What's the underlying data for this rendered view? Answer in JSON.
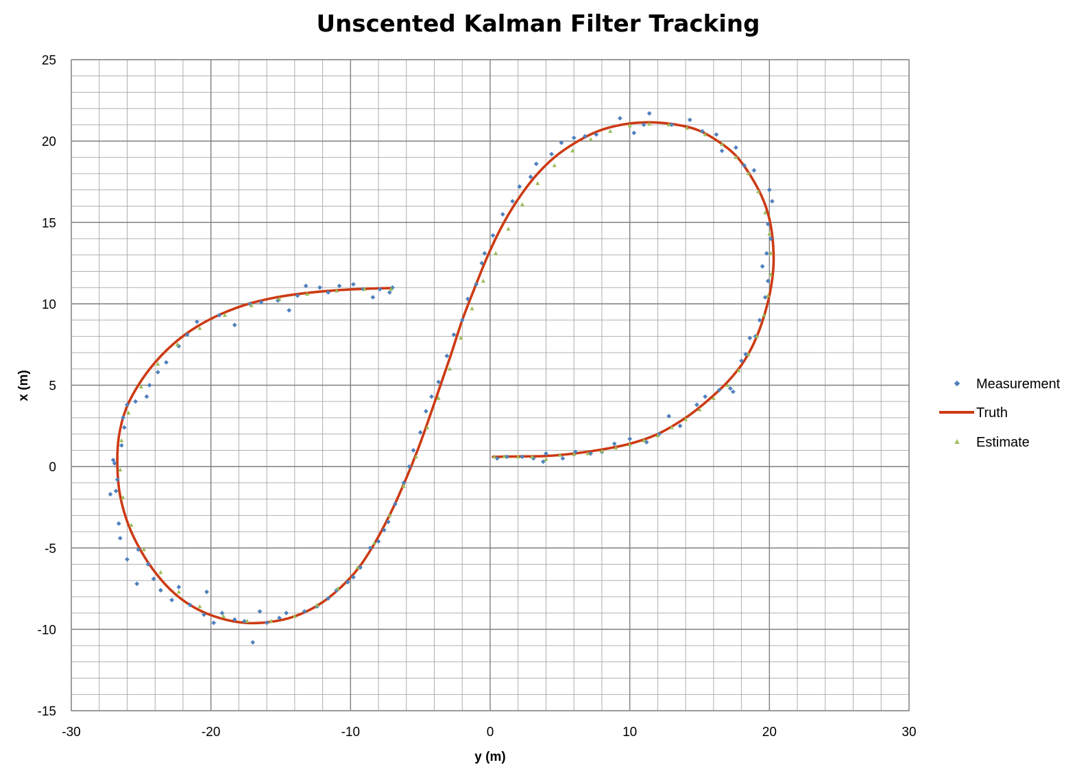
{
  "chart_data": {
    "type": "scatter",
    "title": "Unscented Kalman Filter Tracking",
    "xlabel": "y (m)",
    "ylabel": "x (m)",
    "xlim": [
      -30,
      30
    ],
    "ylim": [
      -15,
      25
    ],
    "major_x_ticks": [
      "-30",
      "-20",
      "-10",
      "0",
      "10",
      "20",
      "30"
    ],
    "major_y_ticks": [
      "25",
      "20",
      "15",
      "10",
      "5",
      "0",
      "-5",
      "-10",
      "-15"
    ],
    "grid": "on",
    "legend_position": "right",
    "series": [
      {
        "name": "Measurement",
        "marker": "diamond",
        "color": "#4f81bd",
        "points": [
          [
            0.5,
            0.5
          ],
          [
            1.2,
            0.6
          ],
          [
            2.3,
            0.6
          ],
          [
            3.1,
            0.5
          ],
          [
            3.8,
            0.3
          ],
          [
            4.0,
            0.8
          ],
          [
            5.2,
            0.5
          ],
          [
            6.1,
            0.9
          ],
          [
            7.2,
            0.8
          ],
          [
            8.0,
            0.9
          ],
          [
            8.9,
            1.4
          ],
          [
            10.0,
            1.7
          ],
          [
            11.2,
            1.5
          ],
          [
            12.1,
            2.0
          ],
          [
            12.8,
            3.1
          ],
          [
            13.6,
            2.5
          ],
          [
            14.8,
            3.8
          ],
          [
            15.4,
            4.3
          ],
          [
            16.4,
            4.7
          ],
          [
            17.2,
            4.8
          ],
          [
            17.4,
            4.6
          ],
          [
            18.0,
            6.5
          ],
          [
            18.3,
            6.9
          ],
          [
            18.6,
            7.9
          ],
          [
            19.0,
            8.0
          ],
          [
            19.3,
            9.0
          ],
          [
            19.7,
            10.4
          ],
          [
            19.9,
            11.4
          ],
          [
            19.5,
            12.3
          ],
          [
            19.8,
            13.1
          ],
          [
            20.1,
            14.0
          ],
          [
            19.9,
            14.9
          ],
          [
            20.2,
            16.3
          ],
          [
            20.0,
            17.0
          ],
          [
            18.9,
            18.2
          ],
          [
            18.2,
            18.5
          ],
          [
            17.6,
            19.6
          ],
          [
            16.6,
            19.4
          ],
          [
            16.2,
            20.4
          ],
          [
            15.2,
            20.6
          ],
          [
            14.3,
            21.3
          ],
          [
            13.0,
            21.0
          ],
          [
            11.4,
            21.7
          ],
          [
            11.0,
            21.0
          ],
          [
            10.3,
            20.5
          ],
          [
            9.3,
            21.4
          ],
          [
            7.6,
            20.4
          ],
          [
            6.8,
            20.3
          ],
          [
            6.0,
            20.2
          ],
          [
            5.1,
            19.9
          ],
          [
            4.4,
            19.2
          ],
          [
            3.3,
            18.6
          ],
          [
            2.9,
            17.8
          ],
          [
            2.1,
            17.2
          ],
          [
            1.6,
            16.3
          ],
          [
            0.9,
            15.5
          ],
          [
            0.2,
            14.2
          ],
          [
            -0.4,
            13.1
          ],
          [
            -0.6,
            12.5
          ],
          [
            -1.0,
            11.2
          ],
          [
            -1.6,
            10.3
          ],
          [
            -2.0,
            9.0
          ],
          [
            -2.6,
            8.1
          ],
          [
            -3.1,
            6.8
          ],
          [
            -3.7,
            5.2
          ],
          [
            -4.2,
            4.3
          ],
          [
            -4.6,
            3.4
          ],
          [
            -5.0,
            2.1
          ],
          [
            -5.5,
            1.0
          ],
          [
            -5.8,
            0.0
          ],
          [
            -6.2,
            -1.0
          ],
          [
            -6.8,
            -2.3
          ],
          [
            -7.3,
            -3.4
          ],
          [
            -7.6,
            -3.9
          ],
          [
            -8.0,
            -4.6
          ],
          [
            -8.6,
            -5.0
          ],
          [
            -9.3,
            -6.2
          ],
          [
            -9.8,
            -6.8
          ],
          [
            -10.2,
            -7.1
          ],
          [
            -11.0,
            -7.6
          ],
          [
            -11.6,
            -8.1
          ],
          [
            -12.4,
            -8.6
          ],
          [
            -13.3,
            -8.9
          ],
          [
            -14.6,
            -9.0
          ],
          [
            -15.1,
            -9.3
          ],
          [
            -16.0,
            -9.6
          ],
          [
            -16.5,
            -8.9
          ],
          [
            -17.0,
            -10.8
          ],
          [
            -17.6,
            -9.5
          ],
          [
            -18.3,
            -9.4
          ],
          [
            -19.2,
            -9.0
          ],
          [
            -19.8,
            -9.6
          ],
          [
            -20.5,
            -9.1
          ],
          [
            -20.3,
            -7.7
          ],
          [
            -21.5,
            -8.5
          ],
          [
            -22.3,
            -7.4
          ],
          [
            -22.8,
            -8.2
          ],
          [
            -23.6,
            -7.6
          ],
          [
            -24.1,
            -6.9
          ],
          [
            -24.5,
            -6.0
          ],
          [
            -25.3,
            -7.2
          ],
          [
            -25.2,
            -5.1
          ],
          [
            -26.0,
            -5.7
          ],
          [
            -26.5,
            -4.4
          ],
          [
            -26.6,
            -3.5
          ],
          [
            -26.8,
            -1.5
          ],
          [
            -27.2,
            -1.7
          ],
          [
            -26.7,
            -0.8
          ],
          [
            -26.9,
            0.2
          ],
          [
            -27.0,
            0.4
          ],
          [
            -26.4,
            1.3
          ],
          [
            -26.2,
            2.4
          ],
          [
            -26.3,
            3.0
          ],
          [
            -26.0,
            3.8
          ],
          [
            -25.4,
            4.0
          ],
          [
            -24.6,
            4.3
          ],
          [
            -24.4,
            5.0
          ],
          [
            -23.8,
            5.8
          ],
          [
            -23.2,
            6.4
          ],
          [
            -22.3,
            7.4
          ],
          [
            -21.7,
            8.1
          ],
          [
            -21.0,
            8.9
          ],
          [
            -19.4,
            9.3
          ],
          [
            -18.3,
            8.7
          ],
          [
            -17.2,
            10.0
          ],
          [
            -16.4,
            10.1
          ],
          [
            -15.2,
            10.2
          ],
          [
            -14.4,
            9.6
          ],
          [
            -13.8,
            10.5
          ],
          [
            -13.2,
            11.1
          ],
          [
            -12.2,
            11.0
          ],
          [
            -11.6,
            10.7
          ],
          [
            -10.8,
            11.1
          ],
          [
            -9.8,
            11.2
          ],
          [
            -9.1,
            10.9
          ],
          [
            -8.4,
            10.4
          ],
          [
            -7.9,
            10.9
          ],
          [
            -7.2,
            10.7
          ],
          [
            -7.0,
            11.0
          ]
        ]
      },
      {
        "name": "Truth",
        "marker": "line",
        "color": "#cc3a13",
        "points": [
          [
            0.2,
            0.6
          ],
          [
            2.0,
            0.62
          ],
          [
            4.0,
            0.65
          ],
          [
            6.0,
            0.8
          ],
          [
            8.0,
            1.05
          ],
          [
            10.0,
            1.4
          ],
          [
            12.0,
            2.0
          ],
          [
            14.0,
            3.0
          ],
          [
            15.5,
            4.0
          ],
          [
            17.0,
            5.2
          ],
          [
            18.2,
            6.5
          ],
          [
            19.1,
            8.0
          ],
          [
            19.8,
            9.8
          ],
          [
            20.2,
            11.5
          ],
          [
            20.3,
            13.0
          ],
          [
            20.1,
            14.8
          ],
          [
            19.6,
            16.3
          ],
          [
            18.7,
            17.8
          ],
          [
            17.6,
            19.1
          ],
          [
            16.3,
            20.0
          ],
          [
            14.8,
            20.7
          ],
          [
            13.0,
            21.05
          ],
          [
            11.2,
            21.15
          ],
          [
            9.4,
            21.0
          ],
          [
            7.7,
            20.6
          ],
          [
            6.1,
            19.9
          ],
          [
            4.6,
            19.0
          ],
          [
            3.2,
            17.8
          ],
          [
            1.9,
            16.3
          ],
          [
            0.8,
            14.7
          ],
          [
            -0.2,
            12.9
          ],
          [
            -1.1,
            11.0
          ],
          [
            -2.0,
            9.0
          ],
          [
            -2.8,
            6.9
          ],
          [
            -3.6,
            4.9
          ],
          [
            -4.4,
            2.9
          ],
          [
            -5.2,
            1.0
          ],
          [
            -6.1,
            -0.9
          ],
          [
            -7.1,
            -2.8
          ],
          [
            -8.2,
            -4.6
          ],
          [
            -9.4,
            -6.2
          ],
          [
            -10.8,
            -7.5
          ],
          [
            -12.3,
            -8.5
          ],
          [
            -14.0,
            -9.2
          ],
          [
            -15.8,
            -9.55
          ],
          [
            -17.6,
            -9.6
          ],
          [
            -19.4,
            -9.3
          ],
          [
            -21.1,
            -8.7
          ],
          [
            -22.6,
            -7.8
          ],
          [
            -23.9,
            -6.6
          ],
          [
            -25.0,
            -5.2
          ],
          [
            -25.9,
            -3.6
          ],
          [
            -26.5,
            -1.8
          ],
          [
            -26.7,
            0.0
          ],
          [
            -26.6,
            1.8
          ],
          [
            -26.1,
            3.5
          ],
          [
            -25.2,
            5.0
          ],
          [
            -24.0,
            6.4
          ],
          [
            -22.6,
            7.6
          ],
          [
            -21.0,
            8.6
          ],
          [
            -19.2,
            9.4
          ],
          [
            -17.3,
            10.0
          ],
          [
            -15.3,
            10.4
          ],
          [
            -13.3,
            10.65
          ],
          [
            -11.2,
            10.82
          ],
          [
            -9.1,
            10.92
          ],
          [
            -7.0,
            10.97
          ]
        ]
      },
      {
        "name": "Estimate",
        "marker": "triangle",
        "color": "#9bbb59",
        "points": [
          [
            0.3,
            0.6
          ],
          [
            1.0,
            0.62
          ],
          [
            2.0,
            0.6
          ],
          [
            3.0,
            0.6
          ],
          [
            4.0,
            0.45
          ],
          [
            5.0,
            0.7
          ],
          [
            6.0,
            0.75
          ],
          [
            7.0,
            0.8
          ],
          [
            8.0,
            0.95
          ],
          [
            9.0,
            1.15
          ],
          [
            10.0,
            1.35
          ],
          [
            11.0,
            1.6
          ],
          [
            12.0,
            1.9
          ],
          [
            13.0,
            2.4
          ],
          [
            14.0,
            2.9
          ],
          [
            15.0,
            3.5
          ],
          [
            16.0,
            4.2
          ],
          [
            17.0,
            5.0
          ],
          [
            17.8,
            5.9
          ],
          [
            18.5,
            6.9
          ],
          [
            19.1,
            8.0
          ],
          [
            19.6,
            9.3
          ],
          [
            19.9,
            10.5
          ],
          [
            20.1,
            11.8
          ],
          [
            20.1,
            13.1
          ],
          [
            20.0,
            14.3
          ],
          [
            19.7,
            15.6
          ],
          [
            19.2,
            16.9
          ],
          [
            18.5,
            18.0
          ],
          [
            17.6,
            19.0
          ],
          [
            16.6,
            19.8
          ],
          [
            15.4,
            20.4
          ],
          [
            14.1,
            20.8
          ],
          [
            12.8,
            21.0
          ],
          [
            11.4,
            21.05
          ],
          [
            10.0,
            20.95
          ],
          [
            8.6,
            20.6
          ],
          [
            7.2,
            20.1
          ],
          [
            5.9,
            19.4
          ],
          [
            4.6,
            18.5
          ],
          [
            3.4,
            17.4
          ],
          [
            2.3,
            16.1
          ],
          [
            1.3,
            14.6
          ],
          [
            0.4,
            13.1
          ],
          [
            -0.5,
            11.4
          ],
          [
            -1.3,
            9.7
          ],
          [
            -2.1,
            7.9
          ],
          [
            -2.9,
            6.0
          ],
          [
            -3.7,
            4.2
          ],
          [
            -4.5,
            2.4
          ],
          [
            -5.3,
            0.6
          ],
          [
            -6.2,
            -1.2
          ],
          [
            -7.2,
            -3.0
          ],
          [
            -8.3,
            -4.7
          ],
          [
            -9.5,
            -6.2
          ],
          [
            -10.9,
            -7.5
          ],
          [
            -12.4,
            -8.5
          ],
          [
            -14.0,
            -9.2
          ],
          [
            -15.7,
            -9.5
          ],
          [
            -17.4,
            -9.5
          ],
          [
            -19.1,
            -9.2
          ],
          [
            -20.8,
            -8.6
          ],
          [
            -22.3,
            -7.7
          ],
          [
            -23.6,
            -6.5
          ],
          [
            -24.8,
            -5.1
          ],
          [
            -25.7,
            -3.6
          ],
          [
            -26.3,
            -1.9
          ],
          [
            -26.5,
            -0.2
          ],
          [
            -26.4,
            1.6
          ],
          [
            -25.9,
            3.3
          ],
          [
            -25.0,
            4.9
          ],
          [
            -23.8,
            6.3
          ],
          [
            -22.4,
            7.5
          ],
          [
            -20.8,
            8.5
          ],
          [
            -19.0,
            9.3
          ],
          [
            -17.1,
            9.9
          ],
          [
            -15.1,
            10.3
          ],
          [
            -13.1,
            10.6
          ],
          [
            -11.0,
            10.8
          ],
          [
            -9.0,
            10.9
          ],
          [
            -7.1,
            10.9
          ]
        ]
      }
    ]
  }
}
